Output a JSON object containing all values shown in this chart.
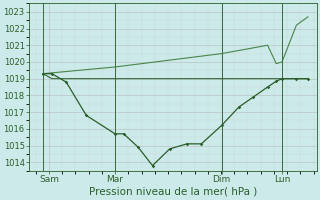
{
  "background_color": "#cdeaea",
  "grid_major_color": "#b0b0b0",
  "grid_minor_color": "#c8c8c8",
  "line_color_dark": "#2a5e2a",
  "line_color_medium": "#3a7a3a",
  "xlabel": "Pression niveau de la mer( hPa )",
  "ylim": [
    1013.5,
    1023.5
  ],
  "yticks": [
    1014,
    1015,
    1016,
    1017,
    1018,
    1019,
    1020,
    1021,
    1022,
    1023
  ],
  "xlim": [
    0,
    100
  ],
  "xtick_positions": [
    7,
    30,
    67,
    88
  ],
  "xtick_labels": [
    "Sam",
    "Mar",
    "Dim",
    "Lun"
  ],
  "vline_positions": [
    5,
    30,
    67,
    88
  ],
  "series1_x": [
    5,
    8,
    13,
    20,
    30,
    33,
    38,
    43,
    49,
    55,
    60,
    67,
    73,
    78,
    83,
    86,
    88,
    93,
    97
  ],
  "series1_y": [
    1019.3,
    1019.3,
    1018.8,
    1016.8,
    1015.7,
    1015.7,
    1014.9,
    1013.8,
    1014.8,
    1015.1,
    1015.1,
    1016.2,
    1017.3,
    1017.9,
    1018.5,
    1018.85,
    1019.0,
    1019.0,
    1019.0
  ],
  "series2_x": [
    5,
    8,
    30,
    49,
    67,
    83,
    88,
    93,
    97
  ],
  "series2_y": [
    1019.3,
    1019.0,
    1019.0,
    1019.0,
    1019.0,
    1019.0,
    1019.0,
    1019.0,
    1019.0
  ],
  "series3_x": [
    5,
    30,
    67,
    83,
    86,
    88,
    93,
    97
  ],
  "series3_y": [
    1019.3,
    1019.7,
    1020.5,
    1021.0,
    1019.9,
    1020.0,
    1022.2,
    1022.7
  ],
  "ylabel_fontsize": 6,
  "xlabel_fontsize": 7.5
}
